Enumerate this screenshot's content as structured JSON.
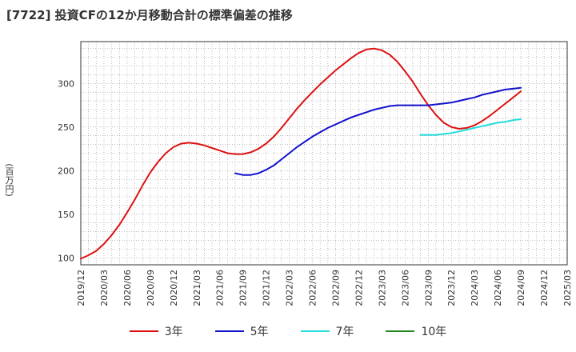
{
  "title": "[7722]  投資CFの12か月移動合計の標準偏差の推移",
  "ylabel": "(百万円)",
  "chart_data": {
    "type": "line",
    "title": "[7722]  投資CFの12か月移動合計の標準偏差の推移",
    "ylabel": "(百万円)",
    "xlabel": "",
    "ylim": [
      92,
      348
    ],
    "yticks": [
      100,
      150,
      200,
      250,
      300
    ],
    "x_ticks": [
      "2019/12",
      "2020/03",
      "2020/06",
      "2020/09",
      "2020/12",
      "2021/03",
      "2021/06",
      "2021/09",
      "2021/12",
      "2022/03",
      "2022/06",
      "2022/09",
      "2022/12",
      "2023/03",
      "2023/06",
      "2023/09",
      "2023/12",
      "2024/03",
      "2024/06",
      "2024/09",
      "2024/12",
      "2025/03"
    ],
    "grid": true,
    "legend_position": "bottom",
    "series": [
      {
        "name": "3年",
        "color": "#dd1111",
        "x": [
          "2019/12",
          "2020/01",
          "2020/02",
          "2020/03",
          "2020/04",
          "2020/05",
          "2020/06",
          "2020/07",
          "2020/08",
          "2020/09",
          "2020/10",
          "2020/11",
          "2020/12",
          "2021/01",
          "2021/02",
          "2021/03",
          "2021/04",
          "2021/05",
          "2021/06",
          "2021/07",
          "2021/08",
          "2021/09",
          "2021/10",
          "2021/11",
          "2021/12",
          "2022/01",
          "2022/02",
          "2022/03",
          "2022/04",
          "2022/05",
          "2022/06",
          "2022/07",
          "2022/08",
          "2022/09",
          "2022/10",
          "2022/11",
          "2022/12",
          "2023/01",
          "2023/02",
          "2023/03",
          "2023/04",
          "2023/05",
          "2023/06",
          "2023/07",
          "2023/08",
          "2023/09",
          "2023/10",
          "2023/11",
          "2023/12",
          "2024/01",
          "2024/02",
          "2024/03",
          "2024/04",
          "2024/05",
          "2024/06",
          "2024/07",
          "2024/08",
          "2024/09"
        ],
        "values": [
          99,
          103,
          108,
          116,
          126,
          138,
          152,
          167,
          183,
          198,
          210,
          220,
          227,
          231,
          232,
          231,
          229,
          226,
          223,
          220,
          219,
          219,
          221,
          225,
          231,
          239,
          249,
          260,
          271,
          281,
          290,
          299,
          307,
          315,
          322,
          329,
          335,
          339,
          340,
          338,
          333,
          325,
          314,
          302,
          288,
          275,
          264,
          255,
          250,
          248,
          249,
          252,
          257,
          263,
          270,
          277,
          284,
          291
        ]
      },
      {
        "name": "5年",
        "color": "#1111cc",
        "x": [
          "2021/08",
          "2021/09",
          "2021/10",
          "2021/11",
          "2021/12",
          "2022/01",
          "2022/02",
          "2022/03",
          "2022/04",
          "2022/05",
          "2022/06",
          "2022/07",
          "2022/08",
          "2022/09",
          "2022/10",
          "2022/11",
          "2022/12",
          "2023/01",
          "2023/02",
          "2023/03",
          "2023/04",
          "2023/05",
          "2023/06",
          "2023/07",
          "2023/08",
          "2023/09",
          "2023/10",
          "2023/11",
          "2023/12",
          "2024/01",
          "2024/02",
          "2024/03",
          "2024/04",
          "2024/05",
          "2024/06",
          "2024/07",
          "2024/08",
          "2024/09"
        ],
        "values": [
          197,
          195,
          195,
          197,
          201,
          206,
          213,
          220,
          227,
          233,
          239,
          244,
          249,
          253,
          257,
          261,
          264,
          267,
          270,
          272,
          274,
          275,
          275,
          275,
          275,
          275,
          276,
          277,
          278,
          280,
          282,
          284,
          287,
          289,
          291,
          293,
          294,
          295
        ]
      },
      {
        "name": "7年",
        "color": "#22dddd",
        "x": [
          "2023/08",
          "2023/09",
          "2023/10",
          "2023/11",
          "2023/12",
          "2024/01",
          "2024/02",
          "2024/03",
          "2024/04",
          "2024/05",
          "2024/06",
          "2024/07",
          "2024/08",
          "2024/09"
        ],
        "values": [
          241,
          241,
          241,
          242,
          243,
          245,
          247,
          249,
          251,
          253,
          255,
          256,
          258,
          259
        ]
      },
      {
        "name": "10年",
        "color": "#228822",
        "x": [],
        "values": []
      }
    ]
  }
}
